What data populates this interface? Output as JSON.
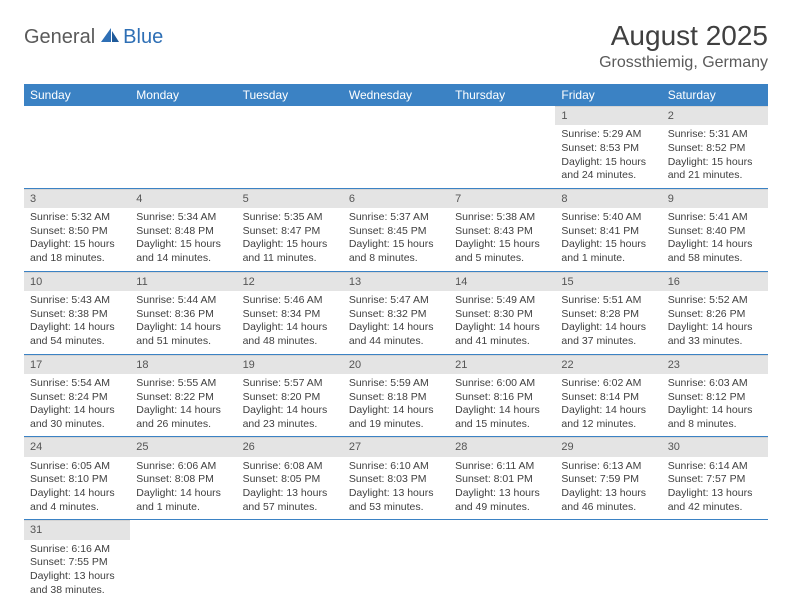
{
  "logo": {
    "general": "General",
    "blue": "Blue"
  },
  "title": "August 2025",
  "location": "Grossthiemig, Germany",
  "colors": {
    "header_bg": "#3b82c4",
    "header_text": "#ffffff",
    "daynum_bg": "#e4e4e4",
    "row_divider": "#3b82c4",
    "body_text": "#404040",
    "logo_gray": "#5a5a5a",
    "logo_blue": "#2e6fb5"
  },
  "weekdays": [
    "Sunday",
    "Monday",
    "Tuesday",
    "Wednesday",
    "Thursday",
    "Friday",
    "Saturday"
  ],
  "weeks": [
    [
      null,
      null,
      null,
      null,
      null,
      {
        "n": "1",
        "sr": "Sunrise: 5:29 AM",
        "ss": "Sunset: 8:53 PM",
        "d1": "Daylight: 15 hours",
        "d2": "and 24 minutes."
      },
      {
        "n": "2",
        "sr": "Sunrise: 5:31 AM",
        "ss": "Sunset: 8:52 PM",
        "d1": "Daylight: 15 hours",
        "d2": "and 21 minutes."
      }
    ],
    [
      {
        "n": "3",
        "sr": "Sunrise: 5:32 AM",
        "ss": "Sunset: 8:50 PM",
        "d1": "Daylight: 15 hours",
        "d2": "and 18 minutes."
      },
      {
        "n": "4",
        "sr": "Sunrise: 5:34 AM",
        "ss": "Sunset: 8:48 PM",
        "d1": "Daylight: 15 hours",
        "d2": "and 14 minutes."
      },
      {
        "n": "5",
        "sr": "Sunrise: 5:35 AM",
        "ss": "Sunset: 8:47 PM",
        "d1": "Daylight: 15 hours",
        "d2": "and 11 minutes."
      },
      {
        "n": "6",
        "sr": "Sunrise: 5:37 AM",
        "ss": "Sunset: 8:45 PM",
        "d1": "Daylight: 15 hours",
        "d2": "and 8 minutes."
      },
      {
        "n": "7",
        "sr": "Sunrise: 5:38 AM",
        "ss": "Sunset: 8:43 PM",
        "d1": "Daylight: 15 hours",
        "d2": "and 5 minutes."
      },
      {
        "n": "8",
        "sr": "Sunrise: 5:40 AM",
        "ss": "Sunset: 8:41 PM",
        "d1": "Daylight: 15 hours",
        "d2": "and 1 minute."
      },
      {
        "n": "9",
        "sr": "Sunrise: 5:41 AM",
        "ss": "Sunset: 8:40 PM",
        "d1": "Daylight: 14 hours",
        "d2": "and 58 minutes."
      }
    ],
    [
      {
        "n": "10",
        "sr": "Sunrise: 5:43 AM",
        "ss": "Sunset: 8:38 PM",
        "d1": "Daylight: 14 hours",
        "d2": "and 54 minutes."
      },
      {
        "n": "11",
        "sr": "Sunrise: 5:44 AM",
        "ss": "Sunset: 8:36 PM",
        "d1": "Daylight: 14 hours",
        "d2": "and 51 minutes."
      },
      {
        "n": "12",
        "sr": "Sunrise: 5:46 AM",
        "ss": "Sunset: 8:34 PM",
        "d1": "Daylight: 14 hours",
        "d2": "and 48 minutes."
      },
      {
        "n": "13",
        "sr": "Sunrise: 5:47 AM",
        "ss": "Sunset: 8:32 PM",
        "d1": "Daylight: 14 hours",
        "d2": "and 44 minutes."
      },
      {
        "n": "14",
        "sr": "Sunrise: 5:49 AM",
        "ss": "Sunset: 8:30 PM",
        "d1": "Daylight: 14 hours",
        "d2": "and 41 minutes."
      },
      {
        "n": "15",
        "sr": "Sunrise: 5:51 AM",
        "ss": "Sunset: 8:28 PM",
        "d1": "Daylight: 14 hours",
        "d2": "and 37 minutes."
      },
      {
        "n": "16",
        "sr": "Sunrise: 5:52 AM",
        "ss": "Sunset: 8:26 PM",
        "d1": "Daylight: 14 hours",
        "d2": "and 33 minutes."
      }
    ],
    [
      {
        "n": "17",
        "sr": "Sunrise: 5:54 AM",
        "ss": "Sunset: 8:24 PM",
        "d1": "Daylight: 14 hours",
        "d2": "and 30 minutes."
      },
      {
        "n": "18",
        "sr": "Sunrise: 5:55 AM",
        "ss": "Sunset: 8:22 PM",
        "d1": "Daylight: 14 hours",
        "d2": "and 26 minutes."
      },
      {
        "n": "19",
        "sr": "Sunrise: 5:57 AM",
        "ss": "Sunset: 8:20 PM",
        "d1": "Daylight: 14 hours",
        "d2": "and 23 minutes."
      },
      {
        "n": "20",
        "sr": "Sunrise: 5:59 AM",
        "ss": "Sunset: 8:18 PM",
        "d1": "Daylight: 14 hours",
        "d2": "and 19 minutes."
      },
      {
        "n": "21",
        "sr": "Sunrise: 6:00 AM",
        "ss": "Sunset: 8:16 PM",
        "d1": "Daylight: 14 hours",
        "d2": "and 15 minutes."
      },
      {
        "n": "22",
        "sr": "Sunrise: 6:02 AM",
        "ss": "Sunset: 8:14 PM",
        "d1": "Daylight: 14 hours",
        "d2": "and 12 minutes."
      },
      {
        "n": "23",
        "sr": "Sunrise: 6:03 AM",
        "ss": "Sunset: 8:12 PM",
        "d1": "Daylight: 14 hours",
        "d2": "and 8 minutes."
      }
    ],
    [
      {
        "n": "24",
        "sr": "Sunrise: 6:05 AM",
        "ss": "Sunset: 8:10 PM",
        "d1": "Daylight: 14 hours",
        "d2": "and 4 minutes."
      },
      {
        "n": "25",
        "sr": "Sunrise: 6:06 AM",
        "ss": "Sunset: 8:08 PM",
        "d1": "Daylight: 14 hours",
        "d2": "and 1 minute."
      },
      {
        "n": "26",
        "sr": "Sunrise: 6:08 AM",
        "ss": "Sunset: 8:05 PM",
        "d1": "Daylight: 13 hours",
        "d2": "and 57 minutes."
      },
      {
        "n": "27",
        "sr": "Sunrise: 6:10 AM",
        "ss": "Sunset: 8:03 PM",
        "d1": "Daylight: 13 hours",
        "d2": "and 53 minutes."
      },
      {
        "n": "28",
        "sr": "Sunrise: 6:11 AM",
        "ss": "Sunset: 8:01 PM",
        "d1": "Daylight: 13 hours",
        "d2": "and 49 minutes."
      },
      {
        "n": "29",
        "sr": "Sunrise: 6:13 AM",
        "ss": "Sunset: 7:59 PM",
        "d1": "Daylight: 13 hours",
        "d2": "and 46 minutes."
      },
      {
        "n": "30",
        "sr": "Sunrise: 6:14 AM",
        "ss": "Sunset: 7:57 PM",
        "d1": "Daylight: 13 hours",
        "d2": "and 42 minutes."
      }
    ],
    [
      {
        "n": "31",
        "sr": "Sunrise: 6:16 AM",
        "ss": "Sunset: 7:55 PM",
        "d1": "Daylight: 13 hours",
        "d2": "and 38 minutes."
      },
      null,
      null,
      null,
      null,
      null,
      null
    ]
  ]
}
